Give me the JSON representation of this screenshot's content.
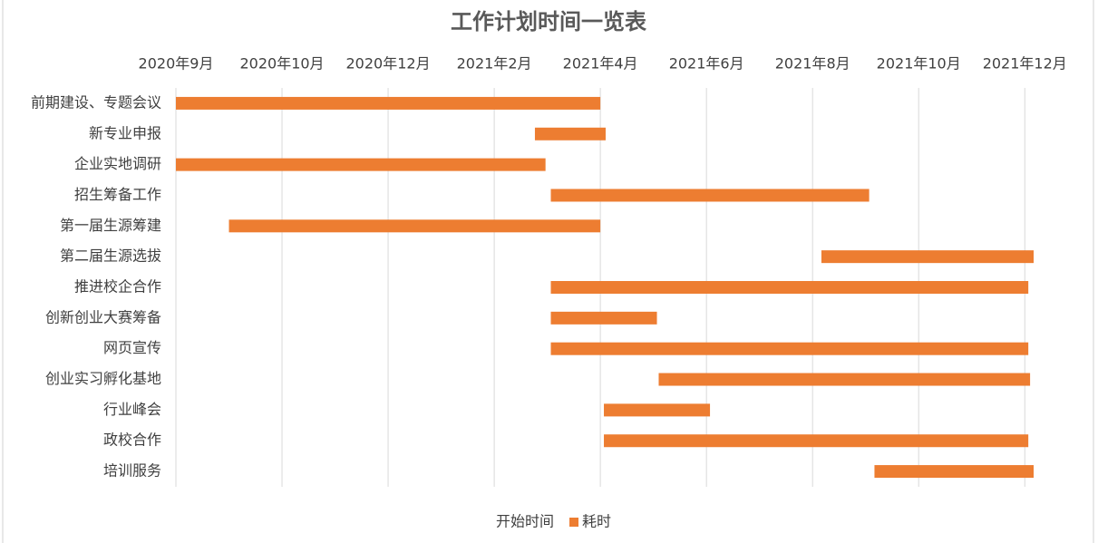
{
  "chart_data": {
    "type": "gantt",
    "title": "工作计划时间一览表",
    "categories": [
      "前期建设、专题会议",
      "新专业申报",
      "企业实地调研",
      "招生筹备工作",
      "第一届生源筹建",
      "第二届生源选拔",
      "推进校企合作",
      "创新创业大赛筹备",
      "网页宣传",
      "创业实习孵化基地",
      "行业峰会",
      "政校合作",
      "培训服务"
    ],
    "series": [
      {
        "name": "开始时间",
        "color": "none",
        "values": [
          44075,
          44278,
          44075,
          44287,
          44105,
          44440,
          44287,
          44287,
          44287,
          44348,
          44317,
          44317,
          44470
        ]
      },
      {
        "name": "耗时",
        "color": "#ed7d31",
        "values": [
          240,
          40,
          209,
          180,
          210,
          120,
          270,
          60,
          270,
          210,
          60,
          240,
          90
        ]
      }
    ],
    "xlim": [
      44075,
      44560
    ],
    "xticks": [
      {
        "value": 44075,
        "label": "2020年9月"
      },
      {
        "value": 44135,
        "label": "2020年10月"
      },
      {
        "value": 44195,
        "label": "2020年12月"
      },
      {
        "value": 44255,
        "label": "2021年2月"
      },
      {
        "value": 44315,
        "label": "2021年4月"
      },
      {
        "value": 44375,
        "label": "2021年6月"
      },
      {
        "value": 44435,
        "label": "2021年8月"
      },
      {
        "value": 44495,
        "label": "2021年10月"
      },
      {
        "value": 44555,
        "label": "2021年12月"
      }
    ],
    "grid": true,
    "legend": "bottom"
  }
}
